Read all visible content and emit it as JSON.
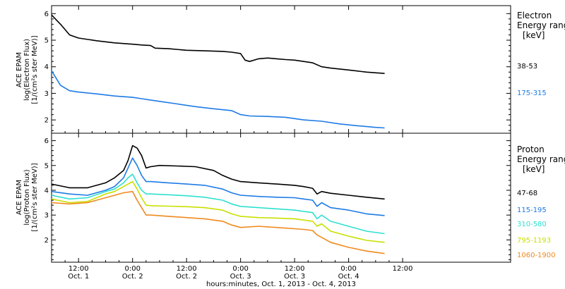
{
  "colors": {
    "black": "#000000",
    "blue": "#1e7be6",
    "cyan": "#2fe0d0",
    "yellow": "#c8e000",
    "orange": "#f08a1e"
  },
  "x_axis": {
    "label": "hours:minutes, Oct. 1, 2013 - Oct. 4, 2013",
    "range_hours": [
      6,
      108
    ],
    "ticks": [
      {
        "hour": 12,
        "time": "12:00",
        "date": "Oct. 1"
      },
      {
        "hour": 24,
        "time": "0:00",
        "date": "Oct. 2"
      },
      {
        "hour": 36,
        "time": "12:00",
        "date": "Oct. 2"
      },
      {
        "hour": 48,
        "time": "0:00",
        "date": "Oct. 3"
      },
      {
        "hour": 60,
        "time": "12:00",
        "date": "Oct. 3"
      },
      {
        "hour": 72,
        "time": "0:00",
        "date": "Oct. 4"
      },
      {
        "hour": 84,
        "time": "12:00",
        "date": ""
      }
    ]
  },
  "chart_data": [
    {
      "type": "line",
      "panel": "electron",
      "ylabel": [
        "ACE EPAM",
        "log(Electron Flux)",
        "[1/(cm²s ster MeV)]"
      ],
      "ylim": [
        1.5,
        6.3
      ],
      "yticks": [
        "2",
        "3",
        "4",
        "5",
        "6"
      ],
      "legend_title": [
        "Electron",
        "Energy ranges",
        "[keV]"
      ],
      "series": [
        {
          "name": "38-53",
          "color": "#000000",
          "x": [
            6,
            8,
            10,
            12,
            16,
            20,
            24,
            26,
            28,
            29,
            32,
            36,
            40,
            44,
            46,
            48,
            49,
            50,
            52,
            54,
            56,
            58,
            60,
            62,
            64,
            66,
            68,
            72,
            76,
            80
          ],
          "y": [
            5.95,
            5.6,
            5.2,
            5.08,
            4.98,
            4.9,
            4.85,
            4.82,
            4.8,
            4.7,
            4.68,
            4.62,
            4.6,
            4.58,
            4.55,
            4.5,
            4.25,
            4.2,
            4.3,
            4.33,
            4.3,
            4.27,
            4.25,
            4.2,
            4.15,
            4.0,
            3.95,
            3.88,
            3.8,
            3.75
          ]
        },
        {
          "name": "175-315",
          "color": "#1e7be6",
          "x": [
            6,
            8,
            10,
            12,
            16,
            20,
            24,
            26,
            28,
            30,
            34,
            38,
            42,
            46,
            48,
            50,
            54,
            58,
            62,
            66,
            70,
            74,
            78,
            80
          ],
          "y": [
            3.85,
            3.3,
            3.1,
            3.05,
            2.98,
            2.9,
            2.85,
            2.8,
            2.75,
            2.7,
            2.6,
            2.5,
            2.42,
            2.35,
            2.2,
            2.15,
            2.13,
            2.1,
            2.0,
            1.95,
            1.85,
            1.78,
            1.72,
            1.7
          ]
        }
      ]
    },
    {
      "type": "line",
      "panel": "proton",
      "ylabel": [
        "ACE EPAM",
        "log(Proton Flux)",
        "[1/(cm²s ster MeV)]"
      ],
      "ylim": [
        1.1,
        6.3
      ],
      "yticks": [
        "2",
        "3",
        "4",
        "5",
        "6"
      ],
      "legend_title": [
        "Proton",
        "Energy ranges",
        "[keV]"
      ],
      "series": [
        {
          "name": "47-68",
          "color": "#000000",
          "x": [
            6,
            10,
            14,
            18,
            20,
            22,
            23,
            24,
            25,
            26,
            27,
            28,
            30,
            34,
            38,
            42,
            44,
            46,
            48,
            52,
            56,
            60,
            62,
            64,
            65,
            66,
            68,
            72,
            76,
            80
          ],
          "y": [
            4.25,
            4.1,
            4.1,
            4.3,
            4.5,
            4.8,
            5.2,
            5.8,
            5.7,
            5.4,
            4.9,
            4.95,
            5.0,
            4.98,
            4.95,
            4.8,
            4.6,
            4.45,
            4.35,
            4.3,
            4.25,
            4.2,
            4.15,
            4.08,
            3.85,
            3.95,
            3.88,
            3.8,
            3.72,
            3.65
          ]
        },
        {
          "name": "115-195",
          "color": "#1e7be6",
          "x": [
            6,
            10,
            14,
            18,
            20,
            22,
            23,
            24,
            25,
            26,
            27,
            28,
            32,
            36,
            40,
            44,
            46,
            48,
            52,
            56,
            60,
            62,
            64,
            65,
            66,
            68,
            72,
            76,
            80
          ],
          "y": [
            3.95,
            3.85,
            3.8,
            4.0,
            4.15,
            4.5,
            4.9,
            5.3,
            5.0,
            4.6,
            4.35,
            4.35,
            4.3,
            4.25,
            4.2,
            4.05,
            3.9,
            3.8,
            3.75,
            3.72,
            3.7,
            3.65,
            3.6,
            3.35,
            3.5,
            3.3,
            3.2,
            3.05,
            2.98
          ]
        },
        {
          "name": "310-580",
          "color": "#2fe0d0",
          "x": [
            6,
            10,
            14,
            18,
            20,
            22,
            23,
            24,
            25,
            26,
            27,
            28,
            32,
            36,
            40,
            44,
            46,
            48,
            52,
            56,
            60,
            62,
            64,
            65,
            66,
            68,
            72,
            76,
            80
          ],
          "y": [
            3.8,
            3.65,
            3.7,
            3.95,
            4.05,
            4.3,
            4.5,
            4.65,
            4.3,
            4.0,
            3.85,
            3.85,
            3.82,
            3.78,
            3.72,
            3.6,
            3.45,
            3.35,
            3.3,
            3.25,
            3.2,
            3.15,
            3.1,
            2.85,
            3.0,
            2.75,
            2.55,
            2.35,
            2.25
          ]
        },
        {
          "name": "795-1193",
          "color": "#c8e000",
          "x": [
            6,
            10,
            14,
            18,
            20,
            22,
            24,
            25,
            26,
            27,
            28,
            32,
            36,
            40,
            44,
            46,
            48,
            52,
            56,
            60,
            62,
            64,
            65,
            66,
            68,
            72,
            76,
            80
          ],
          "y": [
            3.65,
            3.5,
            3.55,
            3.85,
            3.95,
            4.15,
            4.35,
            4.05,
            3.7,
            3.4,
            3.38,
            3.36,
            3.34,
            3.3,
            3.2,
            3.05,
            2.95,
            2.9,
            2.88,
            2.85,
            2.8,
            2.75,
            2.55,
            2.65,
            2.35,
            2.15,
            1.98,
            1.9
          ]
        },
        {
          "name": "1060-1900",
          "color": "#f08a1e",
          "x": [
            6,
            10,
            14,
            18,
            20,
            22,
            24,
            25,
            26,
            27,
            28,
            32,
            36,
            40,
            44,
            46,
            48,
            52,
            56,
            60,
            62,
            64,
            65,
            66,
            68,
            72,
            76,
            80
          ],
          "y": [
            3.5,
            3.45,
            3.5,
            3.7,
            3.8,
            3.9,
            3.95,
            3.6,
            3.3,
            3.0,
            3.0,
            2.95,
            2.9,
            2.85,
            2.75,
            2.6,
            2.5,
            2.55,
            2.5,
            2.45,
            2.42,
            2.38,
            2.2,
            2.1,
            1.9,
            1.7,
            1.55,
            1.45
          ]
        }
      ]
    }
  ]
}
